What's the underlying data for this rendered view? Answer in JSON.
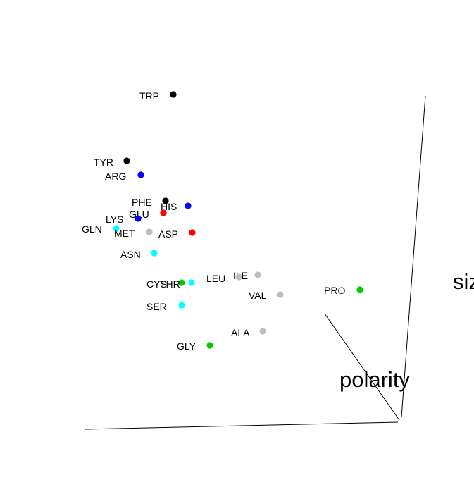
{
  "chart_data": {
    "type": "scatter",
    "projection": "3d",
    "title": "",
    "axes": [
      "polarity",
      "size"
    ],
    "point_labels": true,
    "colors": {
      "black": "#000000",
      "blue": "#0000ff",
      "red": "#ff0000",
      "cyan": "#00ffff",
      "gray": "#bebebe",
      "green": "#00cd00"
    },
    "points": [
      {
        "label": "TRP",
        "color": "black"
      },
      {
        "label": "TYR",
        "color": "black"
      },
      {
        "label": "ARG",
        "color": "blue"
      },
      {
        "label": "PHE",
        "color": "black"
      },
      {
        "label": "HIS",
        "color": "blue"
      },
      {
        "label": "GLU",
        "color": "red"
      },
      {
        "label": "LYS",
        "color": "blue"
      },
      {
        "label": "GLN",
        "color": "cyan"
      },
      {
        "label": "MET",
        "color": "gray"
      },
      {
        "label": "ASP",
        "color": "red"
      },
      {
        "label": "ASN",
        "color": "cyan"
      },
      {
        "label": "ILE",
        "color": "gray"
      },
      {
        "label": "LEU",
        "color": "gray"
      },
      {
        "label": "CYS",
        "color": "green"
      },
      {
        "label": "THR",
        "color": "cyan"
      },
      {
        "label": "VAL",
        "color": "gray"
      },
      {
        "label": "PRO",
        "color": "green"
      },
      {
        "label": "SER",
        "color": "cyan"
      },
      {
        "label": "ALA",
        "color": "gray"
      },
      {
        "label": "GLY",
        "color": "green"
      }
    ]
  }
}
